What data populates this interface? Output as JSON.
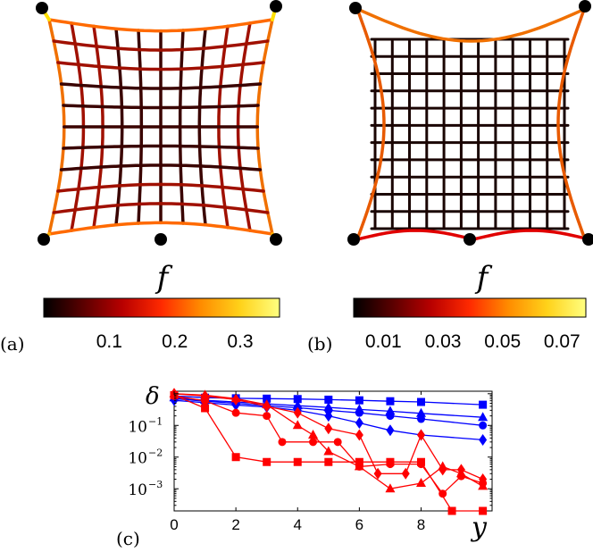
{
  "panels": {
    "a": {
      "label": "(a)",
      "colorbar_title": "f",
      "colorbar_ticks": [
        "0.1",
        "0.2",
        "0.3"
      ],
      "colorbar_range": [
        0,
        0.36
      ],
      "tick_values": [
        0.1,
        0.2,
        0.3
      ]
    },
    "b": {
      "label": "(b)",
      "colorbar_title": "f",
      "colorbar_ticks": [
        "0.01",
        "0.03",
        "0.05",
        "0.07"
      ],
      "colorbar_range": [
        0,
        0.078
      ],
      "tick_values": [
        0.01,
        0.03,
        0.05,
        0.07
      ]
    },
    "c": {
      "label": "(c)"
    }
  },
  "colors": {
    "grid_dark": "#1a0503",
    "colormap": [
      "#000000",
      "#5a0000",
      "#b80000",
      "#ff2a00",
      "#ff8c00",
      "#ffd21a",
      "#ffff80"
    ],
    "blue_series": "#0000ff",
    "red_series": "#ff0000"
  },
  "chart_data": {
    "type": "line",
    "title": "",
    "xlabel": "y",
    "ylabel": "δ",
    "yscale": "log",
    "xlim": [
      0,
      10.3
    ],
    "ylim": [
      0.0002,
      1.2
    ],
    "x_ticks": [
      "0",
      "2",
      "4",
      "6",
      "8"
    ],
    "x_tick_values": [
      0,
      2,
      4,
      6,
      8
    ],
    "y_ticks": [
      {
        "base": "10",
        "exp": "−1",
        "value": 0.1
      },
      {
        "base": "10",
        "exp": "−2",
        "value": 0.01
      },
      {
        "base": "10",
        "exp": "−3",
        "value": 0.001
      }
    ],
    "series": [
      {
        "name": "blue-squares",
        "color": "blue",
        "marker": "square",
        "x": [
          0,
          1,
          2,
          3,
          4,
          5,
          6,
          7,
          8,
          10
        ],
        "y": [
          0.85,
          0.75,
          0.72,
          0.7,
          0.68,
          0.65,
          0.62,
          0.58,
          0.55,
          0.45
        ]
      },
      {
        "name": "blue-triangles",
        "color": "blue",
        "marker": "triangle",
        "x": [
          0,
          1,
          2,
          3,
          4,
          5,
          6,
          7,
          8,
          10
        ],
        "y": [
          0.75,
          0.62,
          0.55,
          0.48,
          0.42,
          0.37,
          0.32,
          0.28,
          0.24,
          0.18
        ]
      },
      {
        "name": "blue-circles",
        "color": "blue",
        "marker": "circle",
        "x": [
          0,
          1,
          2,
          3,
          4,
          5,
          6,
          7,
          8,
          10
        ],
        "y": [
          0.7,
          0.58,
          0.5,
          0.42,
          0.36,
          0.3,
          0.25,
          0.2,
          0.16,
          0.1
        ]
      },
      {
        "name": "blue-diamonds",
        "color": "blue",
        "marker": "diamond",
        "x": [
          0,
          1,
          2,
          3,
          4,
          5,
          6,
          7,
          8,
          10
        ],
        "y": [
          0.62,
          0.52,
          0.44,
          0.38,
          0.3,
          0.2,
          0.12,
          0.07,
          0.05,
          0.035
        ]
      },
      {
        "name": "red-squares",
        "color": "red",
        "marker": "square",
        "x": [
          0,
          1,
          2,
          3,
          4,
          5,
          6,
          7,
          8,
          9,
          10
        ],
        "y": [
          0.9,
          0.35,
          0.01,
          0.007,
          0.007,
          0.007,
          0.007,
          0.007,
          0.007,
          0.0002,
          0.0002
        ]
      },
      {
        "name": "red-circles",
        "color": "red",
        "marker": "circle",
        "x": [
          0,
          1,
          2,
          3,
          3.5,
          4.5,
          5.3,
          6,
          7,
          8,
          8.7,
          9.3,
          10
        ],
        "y": [
          0.85,
          0.6,
          0.25,
          0.2,
          0.03,
          0.03,
          0.03,
          0.005,
          0.006,
          0.006,
          0.0007,
          0.0025,
          0.0015
        ]
      },
      {
        "name": "red-triangles",
        "color": "red",
        "marker": "triangle",
        "x": [
          0,
          1,
          2,
          3,
          4,
          4.5,
          5,
          6,
          7,
          8,
          8.7,
          9.3,
          10
        ],
        "y": [
          1.0,
          0.9,
          0.7,
          0.45,
          0.1,
          0.05,
          0.015,
          0.005,
          0.001,
          0.0015,
          0.005,
          0.003,
          0.0012
        ]
      },
      {
        "name": "red-diamonds",
        "color": "red",
        "marker": "diamond",
        "x": [
          0,
          1,
          2,
          3,
          4,
          5,
          6,
          6.6,
          7.5,
          8,
          8.7,
          9.3,
          10
        ],
        "y": [
          1.0,
          0.85,
          0.65,
          0.4,
          0.25,
          0.08,
          0.05,
          0.003,
          0.003,
          0.05,
          0.004,
          0.004,
          0.002
        ]
      }
    ]
  }
}
